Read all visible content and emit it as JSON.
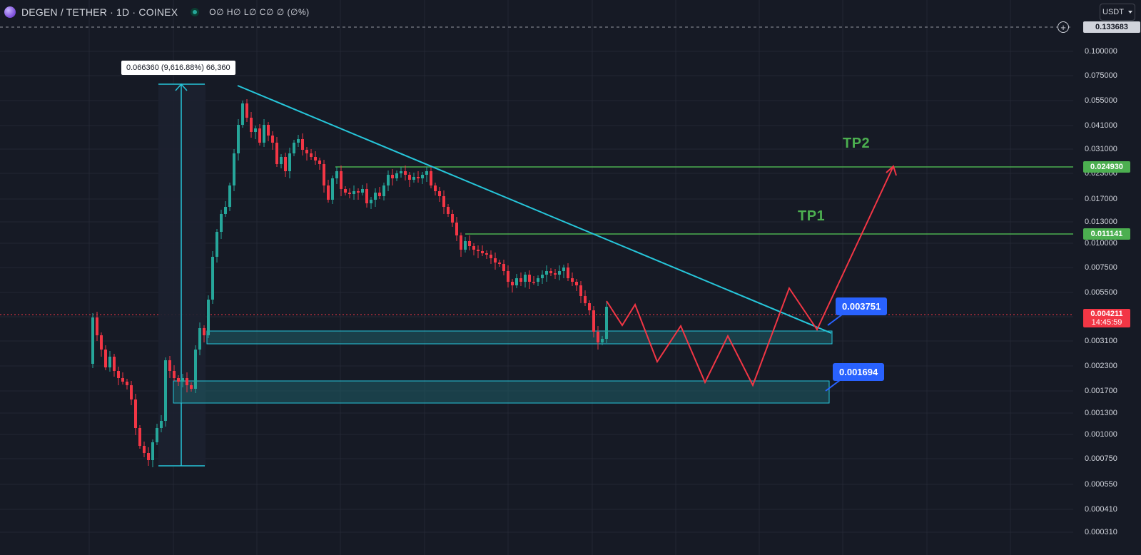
{
  "header": {
    "symbol": "DEGEN / TETHER · 1D · COINEX",
    "ohlc": "O∅ H∅ L∅ C∅ ∅ (∅%)",
    "currency": "USDT",
    "logo_icon": "degen-hat-icon"
  },
  "price_axis": {
    "ticks": [
      "0.100000",
      "0.075000",
      "0.055000",
      "0.041000",
      "0.031000",
      "0.023000",
      "0.017000",
      "0.013000",
      "0.010000",
      "0.007500",
      "0.005500",
      "0.003100",
      "0.002300",
      "0.001700",
      "0.001300",
      "0.001000",
      "0.000750",
      "0.000550",
      "0.000410",
      "0.000310"
    ],
    "crosshair_price": "0.133683",
    "tp2_price": "0.024930",
    "tp1_price": "0.011141",
    "last_price": "0.004211",
    "countdown": "14:45:59"
  },
  "drawings": {
    "measure_label": "0.066360 (9,616.88%) 66,360",
    "tp1_label": "TP1",
    "tp2_label": "TP2",
    "callout_upper": "0.003751",
    "callout_lower": "0.001694"
  },
  "colors": {
    "background": "#161a25",
    "up": "#26a69a",
    "down": "#f23645",
    "trendline": "#26c6da",
    "target_line": "#4caf50",
    "projection": "#f23645",
    "callout": "#2962ff"
  },
  "chart_data": {
    "type": "candlestick",
    "scale": "log",
    "ylim": [
      0.00028,
      0.14
    ],
    "levels": {
      "tp1": 0.011141,
      "tp2": 0.02493,
      "last": 0.004211
    },
    "support_zones": [
      [
        0.00276,
        0.00335
      ],
      [
        0.00148,
        0.00186
      ]
    ],
    "projection_prices": [
      0.0042,
      0.0034,
      0.0043,
      0.00245,
      0.0037,
      0.00182,
      0.0035,
      0.00175,
      0.0057,
      0.00375,
      0.0248
    ]
  }
}
